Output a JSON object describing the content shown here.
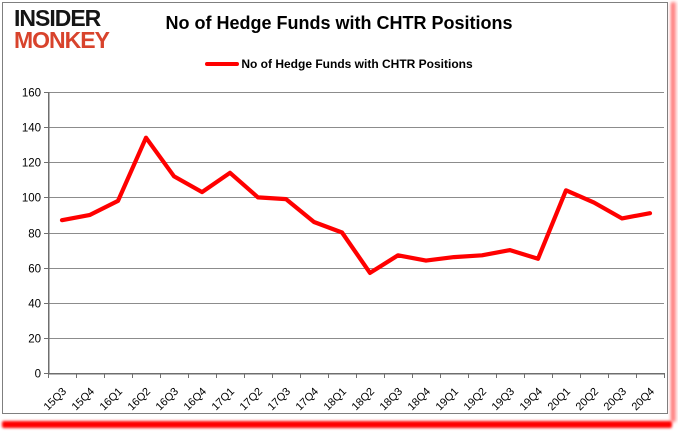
{
  "branding": {
    "logo_line1": "INSIDER",
    "logo_line2": "MONKEY",
    "logo_color_primary": "#151515",
    "logo_color_accent": "#d8432c"
  },
  "header": {
    "title": "No of Hedge Funds with CHTR Positions"
  },
  "legend": {
    "label": "No of Hedge Funds with CHTR Positions",
    "line_color": "#ff0000"
  },
  "colors": {
    "series_red": "#ff0000",
    "gridline": "#8c8c8c",
    "axis": "#6e6e6e",
    "text": "#000000",
    "background": "#ffffff",
    "accent_border_red": "#ff0000"
  },
  "chart_data": {
    "type": "line",
    "title": "No of Hedge Funds with CHTR Positions",
    "categories": [
      "15Q3",
      "15Q4",
      "16Q1",
      "16Q2",
      "16Q3",
      "16Q4",
      "17Q1",
      "17Q2",
      "17Q3",
      "17Q4",
      "18Q1",
      "18Q2",
      "18Q3",
      "18Q4",
      "19Q1",
      "19Q2",
      "19Q3",
      "19Q4",
      "20Q1",
      "20Q2",
      "20Q3",
      "20Q4"
    ],
    "series": [
      {
        "name": "No of Hedge Funds with CHTR Positions",
        "color": "#ff0000",
        "values": [
          87,
          90,
          98,
          134,
          112,
          103,
          114,
          100,
          99,
          86,
          80,
          57,
          67,
          64,
          66,
          67,
          70,
          65,
          104,
          97,
          88,
          91
        ]
      }
    ],
    "xlabel": "",
    "ylabel": "",
    "ylim": [
      0,
      160
    ],
    "y_ticks": [
      0,
      20,
      40,
      60,
      80,
      100,
      120,
      140,
      160
    ],
    "grid": "horizontal",
    "legend_position": "top-center",
    "x_label_rotation_deg": -45
  }
}
